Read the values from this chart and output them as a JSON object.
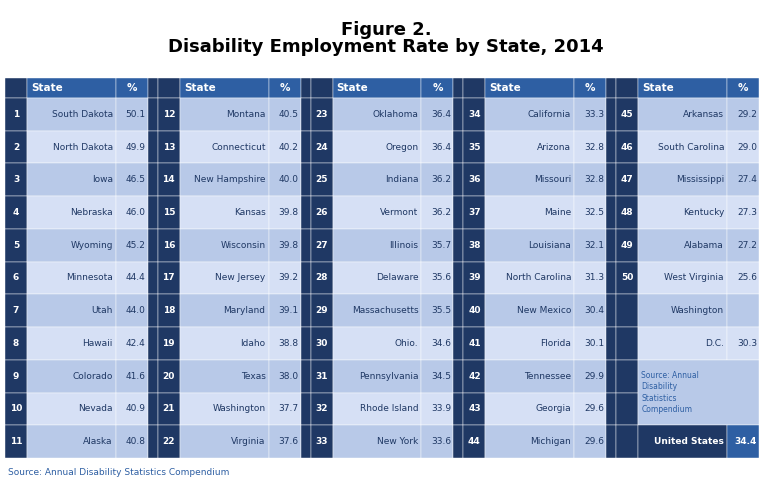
{
  "title_line1": "Figure 2.",
  "title_line2": "Disability Employment Rate by State, 2014",
  "footer": "Source: Annual Disability Statistics Compendium",
  "columns": [
    {
      "rank": 1,
      "state": "South Dakota",
      "pct": "50.1"
    },
    {
      "rank": 2,
      "state": "North Dakota",
      "pct": "49.9"
    },
    {
      "rank": 3,
      "state": "Iowa",
      "pct": "46.5"
    },
    {
      "rank": 4,
      "state": "Nebraska",
      "pct": "46.0"
    },
    {
      "rank": 5,
      "state": "Wyoming",
      "pct": "45.2"
    },
    {
      "rank": 6,
      "state": "Minnesota",
      "pct": "44.4"
    },
    {
      "rank": 7,
      "state": "Utah",
      "pct": "44.0"
    },
    {
      "rank": 8,
      "state": "Hawaii",
      "pct": "42.4"
    },
    {
      "rank": 9,
      "state": "Colorado",
      "pct": "41.6"
    },
    {
      "rank": 10,
      "state": "Nevada",
      "pct": "40.9"
    },
    {
      "rank": 11,
      "state": "Alaska",
      "pct": "40.8"
    },
    {
      "rank": 12,
      "state": "Montana",
      "pct": "40.5"
    },
    {
      "rank": 13,
      "state": "Connecticut",
      "pct": "40.2"
    },
    {
      "rank": 14,
      "state": "New Hampshire",
      "pct": "40.0"
    },
    {
      "rank": 15,
      "state": "Kansas",
      "pct": "39.8"
    },
    {
      "rank": 16,
      "state": "Wisconsin",
      "pct": "39.8"
    },
    {
      "rank": 17,
      "state": "New Jersey",
      "pct": "39.2"
    },
    {
      "rank": 18,
      "state": "Maryland",
      "pct": "39.1"
    },
    {
      "rank": 19,
      "state": "Idaho",
      "pct": "38.8"
    },
    {
      "rank": 20,
      "state": "Texas",
      "pct": "38.0"
    },
    {
      "rank": 21,
      "state": "Washington",
      "pct": "37.7"
    },
    {
      "rank": 22,
      "state": "Virginia",
      "pct": "37.6"
    },
    {
      "rank": 23,
      "state": "Oklahoma",
      "pct": "36.4"
    },
    {
      "rank": 24,
      "state": "Oregon",
      "pct": "36.4"
    },
    {
      "rank": 25,
      "state": "Indiana",
      "pct": "36.2"
    },
    {
      "rank": 26,
      "state": "Vermont",
      "pct": "36.2"
    },
    {
      "rank": 27,
      "state": "Illinois",
      "pct": "35.7"
    },
    {
      "rank": 28,
      "state": "Delaware",
      "pct": "35.6"
    },
    {
      "rank": 29,
      "state": "Massachusetts",
      "pct": "35.5"
    },
    {
      "rank": 30,
      "state": "Ohio.",
      "pct": "34.6"
    },
    {
      "rank": 31,
      "state": "Pennsylvania",
      "pct": "34.5"
    },
    {
      "rank": 32,
      "state": "Rhode Island",
      "pct": "33.9"
    },
    {
      "rank": 33,
      "state": "New York",
      "pct": "33.6"
    },
    {
      "rank": 34,
      "state": "California",
      "pct": "33.3"
    },
    {
      "rank": 35,
      "state": "Arizona",
      "pct": "32.8"
    },
    {
      "rank": 36,
      "state": "Missouri",
      "pct": "32.8"
    },
    {
      "rank": 37,
      "state": "Maine",
      "pct": "32.5"
    },
    {
      "rank": 38,
      "state": "Louisiana",
      "pct": "32.1"
    },
    {
      "rank": 39,
      "state": "North Carolina",
      "pct": "31.3"
    },
    {
      "rank": 40,
      "state": "New Mexico",
      "pct": "30.4"
    },
    {
      "rank": 41,
      "state": "Florida",
      "pct": "30.1"
    },
    {
      "rank": 42,
      "state": "Tennessee",
      "pct": "29.9"
    },
    {
      "rank": 43,
      "state": "Georgia",
      "pct": "29.6"
    },
    {
      "rank": 44,
      "state": "Michigan",
      "pct": "29.6"
    },
    {
      "rank": 45,
      "state": "Arkansas",
      "pct": "29.2"
    },
    {
      "rank": 46,
      "state": "South Carolina",
      "pct": "29.0"
    },
    {
      "rank": 47,
      "state": "Mississippi",
      "pct": "27.4"
    },
    {
      "rank": 48,
      "state": "Kentucky",
      "pct": "27.3"
    },
    {
      "rank": 49,
      "state": "Alabama",
      "pct": "27.2"
    },
    {
      "rank": 50,
      "state": "West Virginia",
      "pct": "25.6"
    }
  ],
  "color_dark_blue": "#1F3864",
  "color_mid_blue": "#2E5FA3",
  "color_light_blue": "#B8C9E8",
  "color_lighter_blue": "#D6E0F5",
  "color_white": "#FFFFFF"
}
